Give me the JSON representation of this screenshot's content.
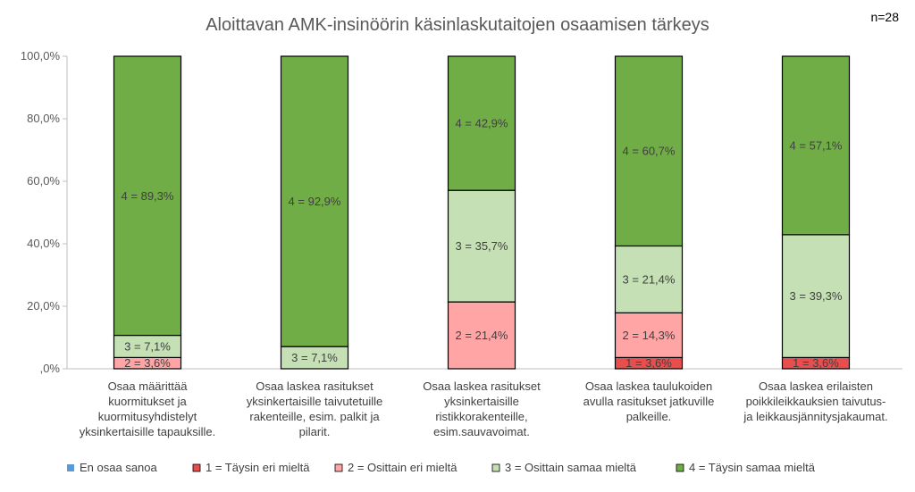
{
  "chart_data": {
    "type": "bar",
    "stacked": true,
    "title": "Aloittavan AMK-insinöörin käsinlaskutaitojen osaamisen tärkeys",
    "note": "n=28",
    "categories": [
      [
        "Osaa määrittää",
        "kuormitukset ja",
        "kuormitusyhdistelyt",
        "yksinkertaisille tapauksille."
      ],
      [
        "Osaa laskea rasitukset",
        "yksinkertaisille taivutetuille",
        "rakenteille, esim. palkit ja",
        "pilarit."
      ],
      [
        "Osaa laskea rasitukset",
        "yksinkertaisille",
        "ristikkorakenteille,",
        "esim.sauvavoimat."
      ],
      [
        "Osaa laskea taulukoiden",
        "avulla rasitukset jatkuville",
        "palkeille."
      ],
      [
        "Osaa laskea erilaisten",
        "poikkileikkauksien taivutus-",
        "ja leikkausjännitysjakaumat."
      ]
    ],
    "series": [
      {
        "name": "En osaa sanoa",
        "color": "#5b9bd5",
        "values": [
          0,
          0,
          0,
          0,
          0
        ],
        "labels": [
          "",
          "",
          "",
          "",
          ""
        ]
      },
      {
        "name": "1 = Täysin eri mieltä",
        "color": "#e84e4e",
        "values": [
          0,
          0,
          0,
          3.6,
          3.6
        ],
        "labels": [
          "",
          "",
          "",
          "1 = 3,6%",
          "1 = 3,6%"
        ]
      },
      {
        "name": "2 = Osittain eri mieltä",
        "color": "#ffa5a5",
        "values": [
          3.6,
          0,
          21.4,
          14.3,
          0
        ],
        "labels": [
          "2 = 3,6%",
          "",
          "2 = 21,4%",
          "2 = 14,3%",
          ""
        ]
      },
      {
        "name": "3 = Osittain samaa mieltä",
        "color": "#c5e0b4",
        "values": [
          7.1,
          7.1,
          35.7,
          21.4,
          39.3
        ],
        "labels": [
          "3 = 7,1%",
          "3 = 7,1%",
          "3 = 35,7%",
          "3 = 21,4%",
          "3 = 39,3%"
        ]
      },
      {
        "name": "4 = Täysin samaa mieltä",
        "color": "#70ad47",
        "values": [
          89.3,
          92.9,
          42.9,
          60.7,
          57.1
        ],
        "labels": [
          "4 = 89,3%",
          "4 = 92,9%",
          "4 = 42,9%",
          "4 = 60,7%",
          "4 = 57,1%"
        ]
      }
    ],
    "ylim": [
      0,
      100
    ],
    "yticks": [
      0,
      20,
      40,
      60,
      80,
      100
    ],
    "ytick_labels": [
      ",0%",
      "20,0%",
      "40,0%",
      "60,0%",
      "80,0%",
      "100,0%"
    ],
    "grid": false,
    "legend_position": "bottom"
  }
}
